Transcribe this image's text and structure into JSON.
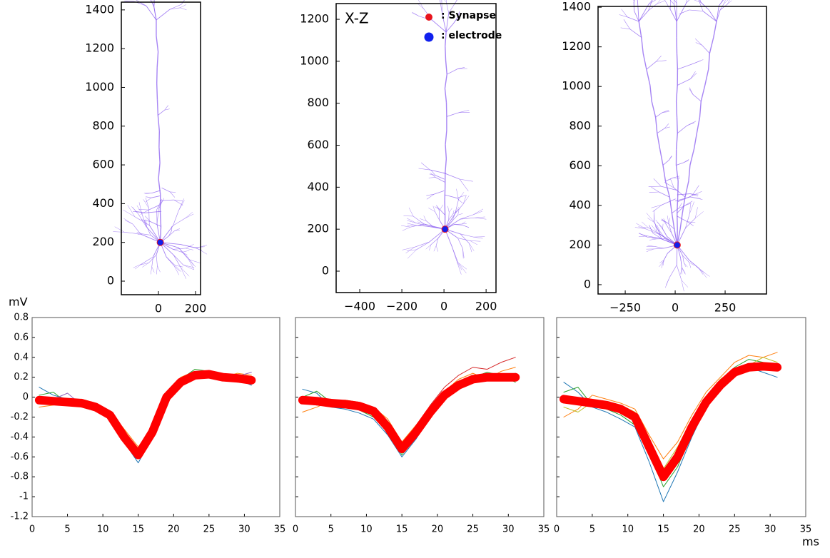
{
  "chart_data": [
    {
      "type": "scatter",
      "xlim": [
        -200,
        227
      ],
      "ylim": [
        -70,
        1440
      ],
      "xticks": [
        0,
        200
      ],
      "yticks": [
        0,
        200,
        400,
        600,
        800,
        1000,
        1200,
        1400
      ],
      "series": [
        {
          "color": "#e8141c",
          "x": [
            10
          ],
          "values": [
            200
          ]
        },
        {
          "color": "#1020ee",
          "x": [
            10
          ],
          "values": [
            200
          ]
        }
      ]
    },
    {
      "type": "scatter",
      "annotation": "X-Z",
      "xlim": [
        -512,
        247
      ],
      "ylim": [
        -102,
        1275
      ],
      "xticks": [
        {
          "value": -400,
          "label": "−400"
        },
        {
          "value": -200,
          "label": "−200"
        },
        0,
        200
      ],
      "yticks": [
        0,
        200,
        400,
        600,
        800,
        1000,
        1200
      ],
      "series": [
        {
          "name": ": Synapse",
          "color": "#e8141c",
          "x": [
            5
          ],
          "values": [
            200
          ]
        },
        {
          "name": ": electrode",
          "color": "#1020ee",
          "x": [
            5
          ],
          "values": [
            200
          ]
        }
      ]
    },
    {
      "type": "scatter",
      "xlim": [
        -386,
        457
      ],
      "ylim": [
        -47,
        1404
      ],
      "xticks": [
        {
          "value": -250,
          "label": "−250"
        },
        0,
        250
      ],
      "yticks": [
        0,
        200,
        400,
        600,
        800,
        1000,
        1200,
        1400
      ],
      "series": [
        {
          "color": "#e8141c",
          "x": [
            10
          ],
          "values": [
            200
          ]
        },
        {
          "color": "#1020ee",
          "x": [
            10
          ],
          "values": [
            200
          ]
        }
      ]
    },
    {
      "type": "line",
      "y_axis_label": "mV",
      "ytick_labels": true,
      "xlim": [
        0,
        35
      ],
      "ylim": [
        -1.2,
        0.8
      ],
      "xticks": [
        0,
        5,
        10,
        15,
        20,
        25,
        30,
        35
      ],
      "yticks": [
        -1.2,
        -1,
        -0.8,
        -0.6,
        -0.4,
        -0.2,
        0,
        0.2,
        0.4,
        0.6,
        0.8
      ],
      "x": [
        1,
        3,
        5,
        7,
        9,
        11,
        13,
        15,
        17,
        19,
        21,
        23,
        25,
        27,
        29,
        31
      ],
      "series": [
        {
          "color": "#1f77b4",
          "values": [
            0.1,
            0.02,
            -0.02,
            -0.05,
            -0.12,
            -0.22,
            -0.45,
            -0.66,
            -0.4,
            -0.05,
            0.12,
            0.2,
            0.25,
            0.22,
            0.18,
            0.12
          ]
        },
        {
          "color": "#ff7f0e",
          "values": [
            -0.1,
            -0.08,
            -0.03,
            -0.02,
            -0.06,
            -0.14,
            -0.32,
            -0.5,
            -0.3,
            0.05,
            0.2,
            0.26,
            0.22,
            0.2,
            0.24,
            0.22
          ]
        },
        {
          "color": "#2ca02c",
          "values": [
            0.02,
            0.05,
            -0.06,
            -0.1,
            -0.14,
            -0.2,
            -0.42,
            -0.62,
            -0.38,
            -0.02,
            0.18,
            0.28,
            0.26,
            0.18,
            0.15,
            0.2
          ]
        },
        {
          "color": "#9467bd",
          "values": [
            -0.05,
            -0.02,
            0.04,
            -0.08,
            -0.09,
            -0.16,
            -0.38,
            -0.55,
            -0.33,
            0.02,
            0.16,
            0.24,
            0.2,
            0.23,
            0.21,
            0.25
          ]
        },
        {
          "color": "#ff0000",
          "values": [
            -0.03,
            -0.04,
            -0.05,
            -0.06,
            -0.1,
            -0.18,
            -0.4,
            -0.58,
            -0.35,
            0,
            0.15,
            0.22,
            0.23,
            0.2,
            0.19,
            0.17
          ]
        }
      ]
    },
    {
      "type": "line",
      "ytick_labels": false,
      "xlim": [
        0,
        35
      ],
      "ylim": [
        -1.2,
        0.8
      ],
      "xticks": [
        0,
        5,
        10,
        15,
        20,
        25,
        30,
        35
      ],
      "yticks": [
        -1.2,
        -1,
        -0.8,
        -0.6,
        -0.4,
        -0.2,
        0,
        0.2,
        0.4,
        0.6,
        0.8
      ],
      "x": [
        1,
        3,
        5,
        7,
        9,
        11,
        13,
        15,
        17,
        19,
        21,
        23,
        25,
        27,
        29,
        31
      ],
      "series": [
        {
          "color": "#1f77b4",
          "values": [
            0.08,
            0.04,
            -0.1,
            -0.12,
            -0.16,
            -0.22,
            -0.38,
            -0.6,
            -0.42,
            -0.2,
            0.0,
            0.1,
            0.16,
            0.22,
            0.18,
            0.24
          ]
        },
        {
          "color": "#ff7f0e",
          "values": [
            -0.15,
            -0.1,
            -0.04,
            -0.03,
            -0.05,
            -0.1,
            -0.22,
            -0.45,
            -0.28,
            -0.1,
            0.06,
            0.18,
            0.24,
            0.18,
            0.26,
            0.3
          ]
        },
        {
          "color": "#2ca02c",
          "values": [
            0.0,
            0.06,
            -0.05,
            -0.1,
            -0.13,
            -0.2,
            -0.35,
            -0.58,
            -0.4,
            -0.18,
            0.05,
            0.15,
            0.2,
            0.25,
            0.22,
            0.15
          ]
        },
        {
          "color": "#d62728",
          "values": [
            -0.06,
            -0.08,
            -0.02,
            -0.05,
            -0.07,
            -0.12,
            -0.26,
            -0.48,
            -0.3,
            -0.08,
            0.1,
            0.22,
            0.3,
            0.28,
            0.35,
            0.4
          ]
        },
        {
          "color": "#ff0000",
          "values": [
            -0.03,
            -0.04,
            -0.06,
            -0.07,
            -0.09,
            -0.14,
            -0.3,
            -0.52,
            -0.35,
            -0.15,
            0.02,
            0.12,
            0.18,
            0.2,
            0.2,
            0.2
          ]
        }
      ]
    },
    {
      "type": "line",
      "x_axis_label": "ms",
      "ytick_labels": false,
      "xlim": [
        0,
        35
      ],
      "ylim": [
        -1.2,
        0.8
      ],
      "xticks": [
        0,
        5,
        10,
        15,
        20,
        25,
        30,
        35
      ],
      "yticks": [
        -1.2,
        -1,
        -0.8,
        -0.6,
        -0.4,
        -0.2,
        0,
        0.2,
        0.4,
        0.6,
        0.8
      ],
      "x": [
        1,
        3,
        5,
        7,
        9,
        11,
        13,
        15,
        17,
        19,
        21,
        23,
        25,
        27,
        29,
        31
      ],
      "series": [
        {
          "color": "#1f77b4",
          "values": [
            0.15,
            0.05,
            -0.1,
            -0.15,
            -0.22,
            -0.3,
            -0.65,
            -1.05,
            -0.75,
            -0.4,
            -0.1,
            0.1,
            0.22,
            0.3,
            0.25,
            0.2
          ]
        },
        {
          "color": "#ff7f0e",
          "values": [
            -0.2,
            -0.12,
            0.02,
            -0.02,
            -0.06,
            -0.12,
            -0.38,
            -0.62,
            -0.45,
            -0.18,
            0.05,
            0.2,
            0.35,
            0.42,
            0.4,
            0.45
          ]
        },
        {
          "color": "#2ca02c",
          "values": [
            0.05,
            0.1,
            -0.08,
            -0.12,
            -0.18,
            -0.28,
            -0.55,
            -0.9,
            -0.7,
            -0.35,
            -0.08,
            0.15,
            0.3,
            0.38,
            0.35,
            0.28
          ]
        },
        {
          "color": "#bcbd22",
          "values": [
            -0.1,
            -0.15,
            -0.05,
            -0.1,
            -0.08,
            -0.15,
            -0.45,
            -0.72,
            -0.5,
            -0.22,
            0.0,
            0.18,
            0.28,
            0.32,
            0.4,
            0.35
          ]
        },
        {
          "color": "#ff0000",
          "values": [
            -0.02,
            -0.04,
            -0.06,
            -0.08,
            -0.12,
            -0.2,
            -0.5,
            -0.8,
            -0.6,
            -0.3,
            -0.05,
            0.12,
            0.25,
            0.3,
            0.31,
            0.3
          ]
        }
      ]
    }
  ]
}
